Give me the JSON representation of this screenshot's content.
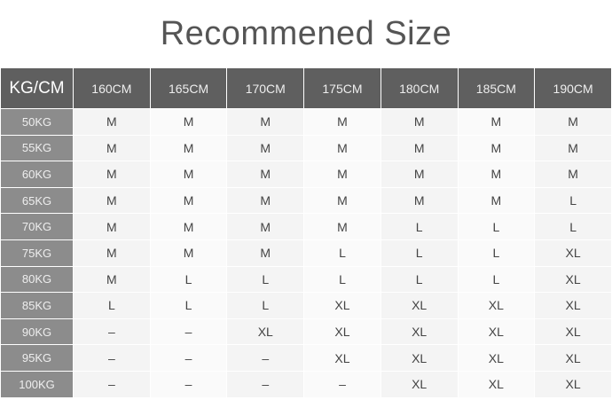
{
  "title": "Recommened Size",
  "corner": "KG/CM",
  "heights": [
    "160CM",
    "165CM",
    "170CM",
    "175CM",
    "180CM",
    "185CM",
    "190CM"
  ],
  "rows": [
    {
      "weight": "50KG",
      "sizes": [
        "M",
        "M",
        "M",
        "M",
        "M",
        "M",
        "M"
      ]
    },
    {
      "weight": "55KG",
      "sizes": [
        "M",
        "M",
        "M",
        "M",
        "M",
        "M",
        "M"
      ]
    },
    {
      "weight": "60KG",
      "sizes": [
        "M",
        "M",
        "M",
        "M",
        "M",
        "M",
        "M"
      ]
    },
    {
      "weight": "65KG",
      "sizes": [
        "M",
        "M",
        "M",
        "M",
        "M",
        "M",
        "L"
      ]
    },
    {
      "weight": "70KG",
      "sizes": [
        "M",
        "M",
        "M",
        "M",
        "L",
        "L",
        "L"
      ]
    },
    {
      "weight": "75KG",
      "sizes": [
        "M",
        "M",
        "M",
        "L",
        "L",
        "L",
        "XL"
      ]
    },
    {
      "weight": "80KG",
      "sizes": [
        "M",
        "L",
        "L",
        "L",
        "L",
        "L",
        "XL"
      ]
    },
    {
      "weight": "85KG",
      "sizes": [
        "L",
        "L",
        "L",
        "XL",
        "XL",
        "XL",
        "XL"
      ]
    },
    {
      "weight": "90KG",
      "sizes": [
        "–",
        "–",
        "XL",
        "XL",
        "XL",
        "XL",
        "XL"
      ]
    },
    {
      "weight": "95KG",
      "sizes": [
        "–",
        "–",
        "–",
        "XL",
        "XL",
        "XL",
        "XL"
      ]
    },
    {
      "weight": "100KG",
      "sizes": [
        "–",
        "–",
        "–",
        "–",
        "XL",
        "XL",
        "XL"
      ]
    }
  ],
  "colors": {
    "header_bg": "#5f5f5f",
    "row_header_bg": "#8c8c8c",
    "cell_bg": "#f4f4f4"
  }
}
